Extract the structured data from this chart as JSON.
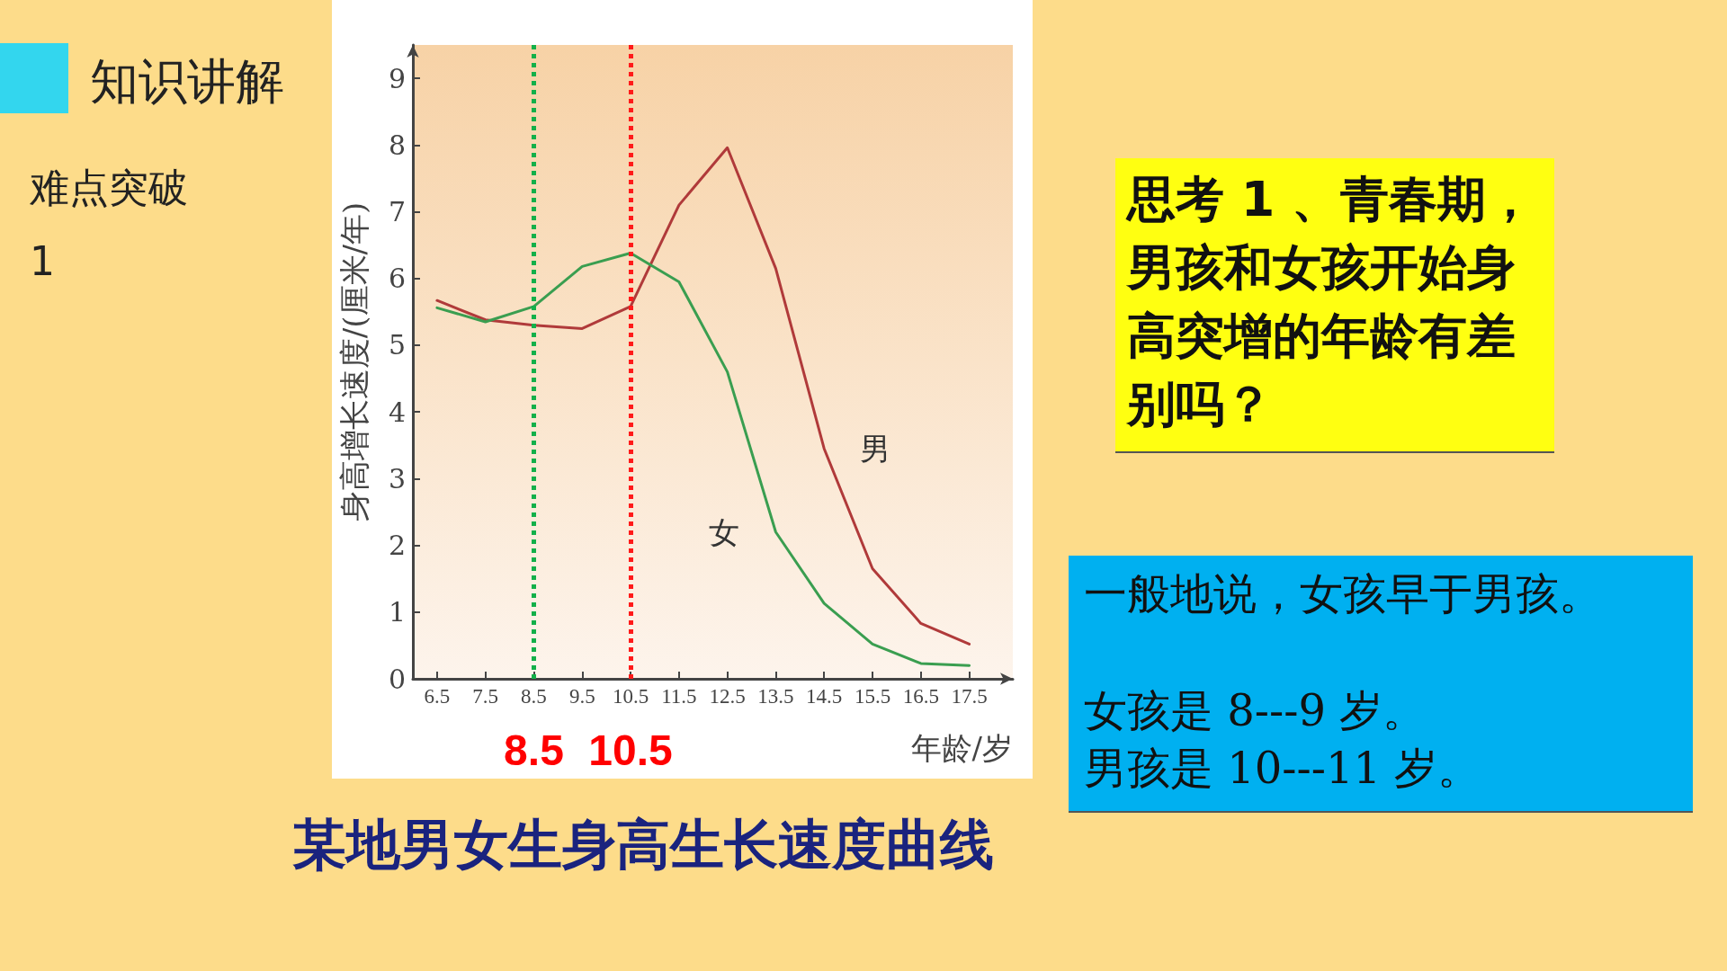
{
  "chart_data": {
    "type": "line",
    "title": "某地男女生身高生长速度曲线",
    "ylabel": "身高增长速度/(厘米/年)",
    "xlabel": "年龄/岁",
    "x": [
      6.5,
      7.5,
      8.5,
      9.5,
      10.5,
      11.5,
      12.5,
      13.5,
      14.5,
      15.5,
      16.5,
      17.5
    ],
    "series": [
      {
        "name": "男",
        "color": "#b03a3a",
        "values": [
          5.67,
          5.38,
          5.3,
          5.25,
          5.58,
          7.1,
          7.96,
          6.15,
          3.45,
          1.65,
          0.83,
          0.52
        ]
      },
      {
        "name": "女",
        "color": "#3a9e50",
        "values": [
          5.56,
          5.35,
          5.58,
          6.18,
          6.38,
          5.95,
          4.6,
          2.2,
          1.13,
          0.52,
          0.23,
          0.2
        ]
      }
    ],
    "xlim": [
      6,
      18.4
    ],
    "xticks": [
      6.5,
      7.5,
      8.5,
      9.5,
      10.5,
      11.5,
      12.5,
      13.5,
      14.5,
      15.5,
      16.5,
      17.5
    ],
    "ylim": [
      0,
      9.5
    ],
    "yticks": [
      0,
      1,
      2,
      3,
      4,
      5,
      6,
      7,
      8,
      9
    ],
    "grid": false,
    "legend": false,
    "marker": "none",
    "line_style": "solid",
    "ref_lines": [
      {
        "axis": "x",
        "value": 8.5,
        "label": "8.5",
        "color": "#12b04a",
        "line_style": "dotted"
      },
      {
        "axis": "x",
        "value": 10.5,
        "label": "10.5",
        "color": "#ff1a1a",
        "line_style": "dotted"
      }
    ],
    "annotations": [
      "知识讲解",
      "难点突破",
      "1",
      "思考 1 、青春期，男孩和女孩开始身高突增的年龄有差别吗？",
      "一般地说，女孩早于男孩。",
      "女孩是 8---9 岁。",
      "男孩是 10---11 岁。"
    ]
  }
}
